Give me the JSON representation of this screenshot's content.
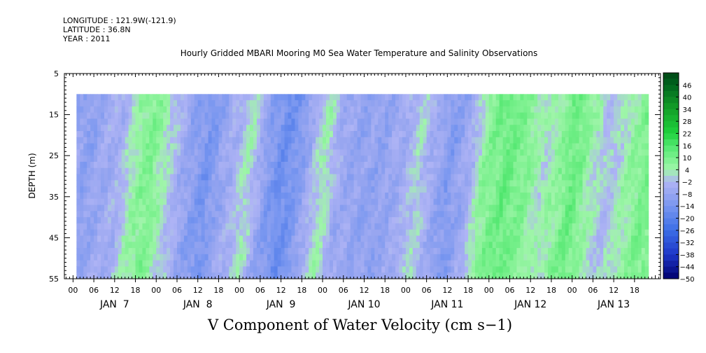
{
  "header": {
    "longitude": "LONGITUDE : 121.9W(-121.9)",
    "latitude": "LATITUDE : 36.8N",
    "year": "YEAR : 2011"
  },
  "chart_data": {
    "type": "heatmap",
    "title": "Hourly Gridded MBARI Mooring M0 Sea Water Temperature and Salinity Observations",
    "xlabel": "V Component of Water Velocity (cm s−1)",
    "ylabel": "DEPTH (m)",
    "ylim": [
      55,
      5
    ],
    "yticks": [
      "5",
      "15",
      "25",
      "35",
      "45",
      "55"
    ],
    "hour_ticks": [
      "00",
      "06",
      "12",
      "18",
      "00",
      "06",
      "12",
      "18",
      "00",
      "06",
      "12",
      "18",
      "00",
      "06",
      "12",
      "18",
      "00",
      "06",
      "12",
      "18",
      "00",
      "06",
      "12",
      "18",
      "00",
      "06",
      "12",
      "18"
    ],
    "day_labels": [
      "JAN  7",
      "JAN  8",
      "JAN  9",
      "JAN 10",
      "JAN 11",
      "JAN 12",
      "JAN 13"
    ],
    "colorbar": {
      "labels": [
        "46",
        "40",
        "34",
        "28",
        "22",
        "16",
        "10",
        "4",
        "−2",
        "−8",
        "−14",
        "−20",
        "−26",
        "−32",
        "−38",
        "−44",
        "−50"
      ],
      "min": -50,
      "max": 52,
      "step": 3
    },
    "data_depth_range": [
      10,
      55
    ],
    "data_time_range_hours_from_jan7_00": [
      1,
      166
    ],
    "pattern": [
      {
        "hour": 0,
        "v": -6
      },
      {
        "hour": 5,
        "v": -10
      },
      {
        "hour": 10,
        "v": -6
      },
      {
        "hour": 15,
        "v": -4
      },
      {
        "hour": 20,
        "v": 6
      },
      {
        "hour": 24,
        "v": 9
      },
      {
        "hour": 28,
        "v": 2
      },
      {
        "hour": 34,
        "v": -8
      },
      {
        "hour": 40,
        "v": -14
      },
      {
        "hour": 44,
        "v": -8
      },
      {
        "hour": 48,
        "v": -4
      },
      {
        "hour": 52,
        "v": 3
      },
      {
        "hour": 57,
        "v": -10
      },
      {
        "hour": 62,
        "v": -16
      },
      {
        "hour": 67,
        "v": -12
      },
      {
        "hour": 71,
        "v": -2
      },
      {
        "hour": 74,
        "v": 4
      },
      {
        "hour": 78,
        "v": -6
      },
      {
        "hour": 84,
        "v": -8
      },
      {
        "hour": 90,
        "v": -9
      },
      {
        "hour": 96,
        "v": -6
      },
      {
        "hour": 101,
        "v": 1
      },
      {
        "hour": 105,
        "v": -5
      },
      {
        "hour": 110,
        "v": -12
      },
      {
        "hour": 116,
        "v": -5
      },
      {
        "hour": 120,
        "v": 7
      },
      {
        "hour": 126,
        "v": 12
      },
      {
        "hour": 132,
        "v": 8
      },
      {
        "hour": 137,
        "v": 2
      },
      {
        "hour": 141,
        "v": 6
      },
      {
        "hour": 146,
        "v": 12
      },
      {
        "hour": 150,
        "v": 5
      },
      {
        "hour": 156,
        "v": -2
      },
      {
        "hour": 160,
        "v": 3
      },
      {
        "hour": 166,
        "v": 9
      }
    ]
  }
}
